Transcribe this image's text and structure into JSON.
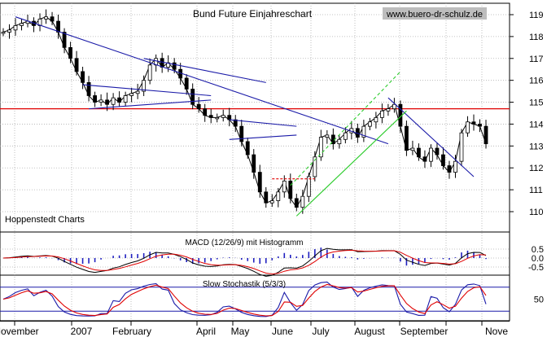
{
  "chart_data": [
    {
      "type": "line",
      "subtype": "candlestick",
      "title": "Bund Future Einjahreschart",
      "watermark": "www.buero-dr-schulz.de",
      "source_label": "Hoppenstedt Charts",
      "y_ticks": [
        110,
        111,
        112,
        113,
        114,
        115,
        116,
        117,
        118,
        119
      ],
      "ylim": [
        109.4,
        119.6
      ],
      "x_labels": [
        "November",
        "2007",
        "February",
        "April",
        "May",
        "June",
        "July",
        "August",
        "September",
        "Nove"
      ],
      "series": [
        {
          "values": [
            118.2,
            118.3,
            118.5,
            118.6,
            118.7,
            118.5,
            118.8,
            118.9,
            118.7,
            118.2,
            117.5,
            117.0,
            116.4,
            115.9,
            115.3,
            115.0,
            115.1,
            114.9,
            115.2,
            115.0,
            115.3,
            115.4,
            115.5,
            116.0,
            116.7,
            117.0,
            116.6,
            116.8,
            116.5,
            116.1,
            115.6,
            114.9,
            114.7,
            114.4,
            114.3,
            114.3,
            114.4,
            114.2,
            113.9,
            113.2,
            112.6,
            111.8,
            110.9,
            110.4,
            110.5,
            110.9,
            111.4,
            110.6,
            110.2,
            110.7,
            111.6,
            112.5,
            113.4,
            113.5,
            113.1,
            113.3,
            113.6,
            113.8,
            113.4,
            113.9,
            114.1,
            114.3,
            114.6,
            114.7,
            114.9,
            113.9,
            112.8,
            112.9,
            112.5,
            112.3,
            112.9,
            112.6,
            112.1,
            111.8,
            112.3,
            113.6,
            114.1,
            114.0,
            113.9,
            113.1
          ]
        }
      ],
      "horizontal_line": 114.7,
      "annotations": [
        "trend lines",
        "channel lines",
        "dashed level ~111.5"
      ]
    },
    {
      "type": "bar",
      "title": "MACD (12/26/9) mit Histogramm",
      "y_ticks": [
        "0.5",
        "0.0",
        "-0.5"
      ],
      "ylim": [
        -0.8,
        0.8
      ]
    },
    {
      "type": "line",
      "title": "Slow Stochastik (5/3/3)",
      "y_ticks": [
        "50"
      ],
      "ylim": [
        0,
        100
      ],
      "reference_levels": [
        80,
        20
      ]
    }
  ]
}
